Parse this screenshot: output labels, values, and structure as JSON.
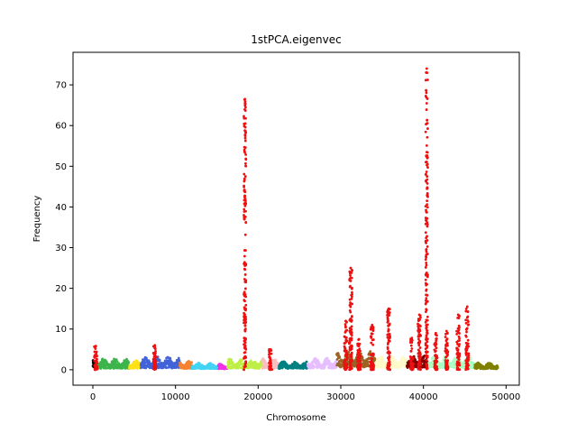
{
  "chart_data": {
    "type": "scatter",
    "title": "1stPCA.eigenvec",
    "xlabel": "Chromosome",
    "ylabel": "Frequency",
    "xlim": [
      -2400,
      51600
    ],
    "ylim": [
      -3.8,
      78
    ],
    "xticks": [
      0,
      10000,
      20000,
      30000,
      40000,
      50000
    ],
    "xtick_labels": [
      "0",
      "10000",
      "20000",
      "30000",
      "40000",
      "50000"
    ],
    "yticks": [
      0,
      10,
      20,
      30,
      40,
      50,
      60,
      70
    ],
    "ytick_labels": [
      "0",
      "10",
      "20",
      "30",
      "40",
      "50",
      "60",
      "70"
    ],
    "grid": false,
    "highlight_color": "#ee1111",
    "segments": [
      {
        "chrom": 1,
        "x0": 0,
        "x1": 600,
        "color": "#000000",
        "base": 1.2,
        "spread": 2.0
      },
      {
        "chrom": 2,
        "x0": 600,
        "x1": 4400,
        "color": "#3cb44b",
        "base": 1.0,
        "spread": 2.5
      },
      {
        "chrom": 3,
        "x0": 4400,
        "x1": 5800,
        "color": "#ffe119",
        "base": 1.0,
        "spread": 2.0
      },
      {
        "chrom": 4,
        "x0": 5800,
        "x1": 10500,
        "color": "#4363d8",
        "base": 1.3,
        "spread": 3.0
      },
      {
        "chrom": 5,
        "x0": 10500,
        "x1": 12000,
        "color": "#f58231",
        "base": 1.0,
        "spread": 2.0
      },
      {
        "chrom": 6,
        "x0": 12000,
        "x1": 15200,
        "color": "#42d4f4",
        "base": 0.8,
        "spread": 1.5
      },
      {
        "chrom": 7,
        "x0": 15200,
        "x1": 16300,
        "color": "#f032e6",
        "base": 0.7,
        "spread": 1.2
      },
      {
        "chrom": 8,
        "x0": 16300,
        "x1": 20500,
        "color": "#bfef45",
        "base": 1.0,
        "spread": 2.5
      },
      {
        "chrom": 9,
        "x0": 20500,
        "x1": 22500,
        "color": "#fabebe",
        "base": 1.2,
        "spread": 2.5
      },
      {
        "chrom": 10,
        "x0": 22500,
        "x1": 26000,
        "color": "#008080",
        "base": 0.9,
        "spread": 1.8
      },
      {
        "chrom": 11,
        "x0": 26000,
        "x1": 29500,
        "color": "#e6beff",
        "base": 1.2,
        "spread": 2.5
      },
      {
        "chrom": 12,
        "x0": 29500,
        "x1": 34200,
        "color": "#9a6324",
        "base": 2.0,
        "spread": 4.0
      },
      {
        "chrom": 13,
        "x0": 34200,
        "x1": 38000,
        "color": "#fffac8",
        "base": 1.5,
        "spread": 3.0
      },
      {
        "chrom": 14,
        "x0": 38000,
        "x1": 40600,
        "color": "#800000",
        "base": 1.8,
        "spread": 3.0
      },
      {
        "chrom": 15,
        "x0": 40600,
        "x1": 46200,
        "color": "#aaffc3",
        "base": 1.5,
        "spread": 3.0
      },
      {
        "chrom": 16,
        "x0": 46200,
        "x1": 49000,
        "color": "#808000",
        "base": 0.7,
        "spread": 1.5
      }
    ],
    "peaks": [
      {
        "x": 350,
        "y": 5.8
      },
      {
        "x": 7500,
        "y": 6.0
      },
      {
        "x": 18400,
        "y": 66.5
      },
      {
        "x": 21500,
        "y": 5.0
      },
      {
        "x": 30600,
        "y": 12.0
      },
      {
        "x": 31200,
        "y": 25.0
      },
      {
        "x": 32200,
        "y": 7.5
      },
      {
        "x": 33800,
        "y": 11.0
      },
      {
        "x": 35800,
        "y": 15.0
      },
      {
        "x": 38600,
        "y": 7.8
      },
      {
        "x": 39500,
        "y": 13.5
      },
      {
        "x": 40400,
        "y": 74.0
      },
      {
        "x": 41500,
        "y": 9.0
      },
      {
        "x": 42800,
        "y": 9.5
      },
      {
        "x": 44200,
        "y": 13.5
      },
      {
        "x": 45300,
        "y": 15.5
      }
    ]
  }
}
